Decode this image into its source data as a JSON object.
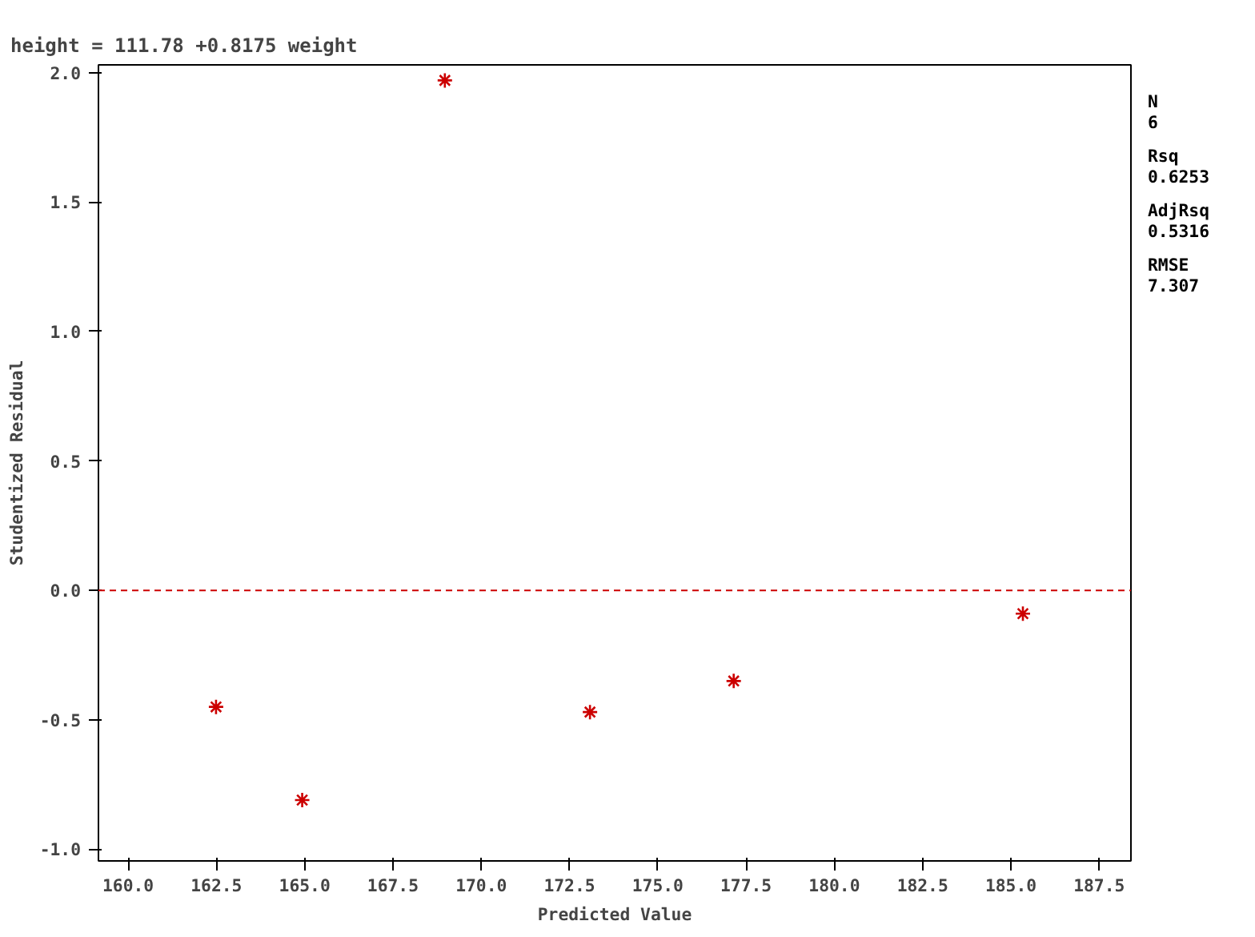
{
  "chart_data": {
    "type": "scatter",
    "title": "height = 111.78 +0.8175 weight",
    "xlabel": "Predicted Value",
    "ylabel": "Studentized Residual",
    "x": [
      162.49,
      164.93,
      168.97,
      173.08,
      177.15,
      185.34
    ],
    "series": [
      {
        "color": "#cc0000",
        "values": [
          -0.45,
          -0.81,
          1.97,
          -0.47,
          -0.35,
          -0.09
        ]
      }
    ],
    "marker": "cross",
    "xlim": [
      159.16,
      188.4
    ],
    "xticks": [
      {
        "value": 160,
        "label": "160.0"
      },
      {
        "value": 162.5,
        "label": "162.5"
      },
      {
        "value": 165,
        "label": "165.0"
      },
      {
        "value": 167.5,
        "label": "167.5"
      },
      {
        "value": 170,
        "label": "170.0"
      },
      {
        "value": 172.5,
        "label": "172.5"
      },
      {
        "value": 175,
        "label": "175.0"
      },
      {
        "value": 177.5,
        "label": "177.5"
      },
      {
        "value": 180,
        "label": "180.0"
      },
      {
        "value": 182.5,
        "label": "182.5"
      },
      {
        "value": 185,
        "label": "185.0"
      },
      {
        "value": 187.5,
        "label": "187.5"
      }
    ],
    "ylim": [
      -1.045,
      2.03
    ],
    "yticks": [
      {
        "value": -1,
        "label": "-1.0"
      },
      {
        "value": -0.5,
        "label": "-0.5"
      },
      {
        "value": 0,
        "label": "0.0"
      },
      {
        "value": 0.5,
        "label": "0.5"
      },
      {
        "value": 1,
        "label": "1.0"
      },
      {
        "value": 1.5,
        "label": "1.5"
      },
      {
        "value": 2,
        "label": "2.0"
      }
    ],
    "ref_lines": [
      {
        "axis": "y",
        "value": 0,
        "color": "#cc0000",
        "line_style": "dashed"
      }
    ],
    "annotations": [
      "N",
      "6",
      "Rsq",
      "0.6253",
      "AdjRsq",
      "0.5316",
      "RMSE",
      "7.307"
    ],
    "grid": false
  }
}
